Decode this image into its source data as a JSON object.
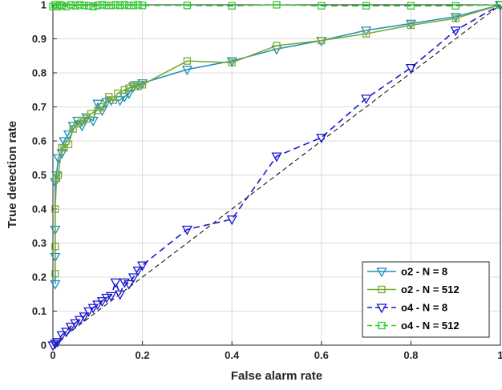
{
  "chart_data": {
    "type": "line",
    "xlabel": "False alarm rate",
    "ylabel": "True detection rate",
    "xlim": [
      0,
      1
    ],
    "ylim": [
      0,
      1
    ],
    "xticks": [
      0,
      0.2,
      0.4,
      0.6,
      0.8,
      1
    ],
    "xtick_labels": [
      "0",
      "0.2",
      "0.4",
      "0.6",
      "0.8",
      "1"
    ],
    "yticks": [
      0,
      0.1,
      0.2,
      0.3,
      0.4,
      0.5,
      0.6,
      0.7,
      0.8,
      0.9,
      1
    ],
    "ytick_labels": [
      "0",
      "0.1",
      "0.2",
      "0.3",
      "0.4",
      "0.5",
      "0.6",
      "0.7",
      "0.8",
      "0.9",
      "1"
    ],
    "grid": true,
    "legend_position": "bottom-right",
    "series": [
      {
        "name": "o2 - N = 8",
        "color": "#1f8fbf",
        "marker": "triangle-down",
        "line": "solid",
        "x": [
          0.005,
          0.005,
          0.005,
          0.005,
          0.008,
          0.012,
          0.02,
          0.025,
          0.035,
          0.045,
          0.055,
          0.065,
          0.075,
          0.09,
          0.1,
          0.11,
          0.12,
          0.13,
          0.15,
          0.16,
          0.17,
          0.18,
          0.19,
          0.2,
          0.3,
          0.4,
          0.5,
          0.6,
          0.7,
          0.8,
          0.9,
          1.0
        ],
        "y": [
          0.18,
          0.26,
          0.34,
          0.48,
          0.5,
          0.55,
          0.565,
          0.6,
          0.62,
          0.645,
          0.66,
          0.645,
          0.67,
          0.66,
          0.71,
          0.69,
          0.715,
          0.72,
          0.72,
          0.73,
          0.74,
          0.76,
          0.765,
          0.77,
          0.81,
          0.835,
          0.87,
          0.895,
          0.925,
          0.945,
          0.965,
          1.0
        ]
      },
      {
        "name": "o2 - N = 512",
        "color": "#7aaa33",
        "marker": "square",
        "line": "solid",
        "x": [
          0.005,
          0.005,
          0.005,
          0.008,
          0.012,
          0.02,
          0.025,
          0.035,
          0.045,
          0.055,
          0.065,
          0.075,
          0.085,
          0.1,
          0.11,
          0.125,
          0.135,
          0.145,
          0.16,
          0.17,
          0.18,
          0.19,
          0.2,
          0.3,
          0.4,
          0.5,
          0.6,
          0.7,
          0.8,
          0.9,
          1.0
        ],
        "y": [
          0.21,
          0.29,
          0.4,
          0.49,
          0.5,
          0.58,
          0.58,
          0.59,
          0.635,
          0.65,
          0.66,
          0.665,
          0.68,
          0.69,
          0.7,
          0.73,
          0.72,
          0.74,
          0.75,
          0.755,
          0.765,
          0.76,
          0.765,
          0.835,
          0.83,
          0.88,
          0.895,
          0.915,
          0.94,
          0.96,
          1.0
        ]
      },
      {
        "name": "o4 - N = 8",
        "color": "#1a1acc",
        "marker": "triangle-down",
        "line": "dashed",
        "x": [
          0.0,
          0.005,
          0.01,
          0.02,
          0.03,
          0.04,
          0.05,
          0.06,
          0.07,
          0.08,
          0.09,
          0.1,
          0.11,
          0.12,
          0.13,
          0.14,
          0.15,
          0.16,
          0.17,
          0.18,
          0.19,
          0.2,
          0.3,
          0.4,
          0.5,
          0.6,
          0.7,
          0.8,
          0.9,
          1.0
        ],
        "y": [
          0.0,
          0.005,
          0.01,
          0.03,
          0.04,
          0.055,
          0.065,
          0.075,
          0.085,
          0.1,
          0.11,
          0.12,
          0.13,
          0.14,
          0.145,
          0.185,
          0.15,
          0.185,
          0.18,
          0.2,
          0.22,
          0.235,
          0.34,
          0.37,
          0.555,
          0.61,
          0.725,
          0.815,
          0.925,
          1.0
        ]
      },
      {
        "name": "o4 - N = 512",
        "color": "#2ecc2e",
        "marker": "square",
        "line": "dashed",
        "x": [
          0.0,
          0.005,
          0.01,
          0.015,
          0.02,
          0.03,
          0.04,
          0.05,
          0.06,
          0.07,
          0.08,
          0.09,
          0.1,
          0.11,
          0.12,
          0.13,
          0.14,
          0.15,
          0.16,
          0.17,
          0.18,
          0.19,
          0.2,
          0.3,
          0.4,
          0.5,
          0.6,
          0.7,
          0.8,
          0.9,
          1.0
        ],
        "y": [
          0.995,
          1.0,
          0.995,
          1.0,
          0.998,
          0.995,
          1.0,
          0.997,
          1.0,
          0.998,
          0.997,
          0.995,
          0.998,
          1.0,
          0.998,
          0.998,
          1.0,
          0.998,
          1.0,
          0.998,
          0.998,
          1.0,
          0.998,
          0.998,
          0.997,
          1.0,
          0.997,
          0.997,
          0.997,
          0.997,
          1.0
        ]
      }
    ],
    "reference_line": {
      "x": [
        0,
        1
      ],
      "y": [
        0,
        1
      ],
      "color": "#000000",
      "line": "dashed"
    }
  }
}
